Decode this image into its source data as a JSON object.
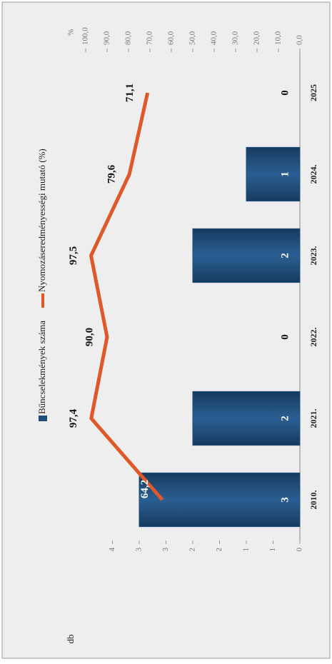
{
  "chart_data": {
    "type": "bar",
    "categories": [
      "2010.",
      "2021.",
      "2022.",
      "2023.",
      "2024.",
      "2025"
    ],
    "series": [
      {
        "name": "Bűncselekmények száma",
        "color": "#1f4e79",
        "type": "bar",
        "values": [
          3,
          2,
          0,
          2,
          1,
          0
        ]
      },
      {
        "name": "Nyomozáseredményességi mutató (%)",
        "color": "#e0582a",
        "type": "line",
        "axis": "y2",
        "values": [
          64.2,
          97.4,
          90.0,
          97.5,
          79.6,
          71.1
        ],
        "value_labels": [
          "64,2",
          "97,4",
          "90,0",
          "97,5",
          "79,6",
          "71,1"
        ]
      }
    ],
    "ylabel": "db",
    "y2label": "%",
    "ylim": [
      0,
      4
    ],
    "yticks": [
      0,
      {
        "value": 0.5,
        "label": "1"
      },
      1,
      {
        "value": 1.5,
        "label": "2"
      },
      2,
      {
        "value": 2.5,
        "label": "3"
      },
      3,
      {
        "value": 3.5,
        "label": "4"
      }
    ],
    "y2lim": [
      0,
      100
    ],
    "y2ticks": [
      {
        "value": 0,
        "label": "0,0"
      },
      {
        "value": 10,
        "label": "10,0"
      },
      {
        "value": 20,
        "label": "20,0"
      },
      {
        "value": 30,
        "label": "30,0"
      },
      {
        "value": 40,
        "label": "40,0"
      },
      {
        "value": 50,
        "label": "50,0"
      },
      {
        "value": 60,
        "label": "60,0"
      },
      {
        "value": 70,
        "label": "70,0"
      },
      {
        "value": 80,
        "label": "80,0"
      },
      {
        "value": 90,
        "label": "90,0"
      },
      {
        "value": 100,
        "label": "100,0"
      }
    ],
    "legend": "top",
    "rotation": -90
  }
}
